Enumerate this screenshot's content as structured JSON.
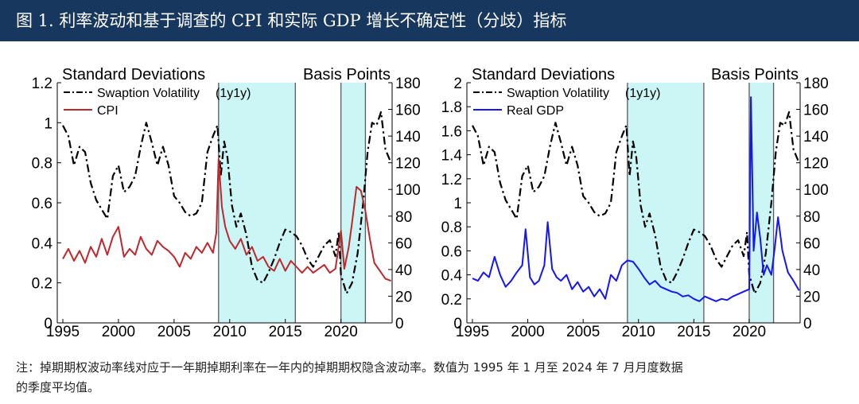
{
  "header": {
    "title": "图 1. 利率波动和基于调查的 CPI 和实际 GDP 增长不确定性（分歧）指标"
  },
  "note": {
    "line1": "注：掉期期权波动率线对应于一年期掉期利率在一年内的掉期期权隐含波动率。数值为 1995 年 1 月至 2024 年 7 月月度数据",
    "line2": "的季度平均值。"
  },
  "colors": {
    "swaption": "#000000",
    "cpi": "#c0272d",
    "gdp": "#1414ff",
    "shade": "#ccf5f5",
    "shade_border": "#5a5a5a"
  },
  "chart_data": [
    {
      "type": "line",
      "left_axis_label": "Standard Deviations",
      "right_axis_label": "Basis Points",
      "left_ylim": [
        0,
        1.2
      ],
      "left_ticks": [
        "0",
        "0.2",
        "0.4",
        "0.6",
        "0.8",
        "1",
        "1.2"
      ],
      "right_ylim": [
        0,
        180
      ],
      "right_ticks": [
        "0",
        "20",
        "40",
        "60",
        "80",
        "100",
        "120",
        "140",
        "160",
        "180"
      ],
      "xlim": [
        1994.5,
        2024.6
      ],
      "x_ticks": [
        "1995",
        "2000",
        "2005",
        "2010",
        "2015",
        "2020"
      ],
      "shaded_ranges": [
        [
          2009.0,
          2015.9
        ],
        [
          2020.0,
          2022.2
        ]
      ],
      "series": [
        {
          "name": "Swaption Volatility",
          "name_suffix": "(1y1y)",
          "axis": "right",
          "style": "dash-dot",
          "x": [
            1995.0,
            1995.5,
            1996.0,
            1996.5,
            1997.0,
            1997.5,
            1998.0,
            1998.5,
            1999.0,
            1999.5,
            2000.0,
            2000.5,
            2001.0,
            2001.5,
            2002.0,
            2002.5,
            2003.0,
            2003.5,
            2004.0,
            2004.5,
            2005.0,
            2005.5,
            2006.0,
            2006.5,
            2007.0,
            2007.5,
            2008.0,
            2008.5,
            2008.9,
            2009.2,
            2009.5,
            2009.8,
            2010.2,
            2010.6,
            2011.0,
            2011.5,
            2012.0,
            2012.5,
            2013.0,
            2013.5,
            2014.0,
            2014.5,
            2015.0,
            2015.5,
            2016.0,
            2016.5,
            2017.0,
            2017.5,
            2018.0,
            2018.5,
            2019.0,
            2019.5,
            2019.8,
            2020.0,
            2020.5,
            2021.0,
            2021.5,
            2022.0,
            2022.4,
            2022.8,
            2023.2,
            2023.6,
            2024.0,
            2024.5
          ],
          "y": [
            148,
            140,
            118,
            132,
            128,
            105,
            92,
            85,
            78,
            110,
            118,
            98,
            102,
            110,
            132,
            150,
            135,
            118,
            132,
            118,
            95,
            90,
            83,
            80,
            82,
            90,
            128,
            140,
            148,
            110,
            136,
            124,
            88,
            72,
            82,
            66,
            42,
            32,
            30,
            38,
            48,
            60,
            70,
            68,
            65,
            58,
            48,
            42,
            50,
            58,
            62,
            50,
            68,
            36,
            22,
            30,
            52,
            90,
            128,
            150,
            148,
            158,
            130,
            120
          ]
        },
        {
          "name": "CPI",
          "axis": "left",
          "style": "solid",
          "x": [
            1995.0,
            1995.5,
            1996.0,
            1996.5,
            1997.0,
            1997.5,
            1998.0,
            1998.5,
            1999.0,
            1999.5,
            2000.0,
            2000.5,
            2001.0,
            2001.5,
            2002.0,
            2002.5,
            2003.0,
            2003.5,
            2004.0,
            2004.5,
            2005.0,
            2005.5,
            2006.0,
            2006.5,
            2007.0,
            2007.5,
            2008.0,
            2008.5,
            2008.8,
            2009.0,
            2009.3,
            2009.6,
            2010.0,
            2010.5,
            2011.0,
            2011.5,
            2012.0,
            2012.5,
            2013.0,
            2013.5,
            2014.0,
            2014.5,
            2015.0,
            2015.5,
            2016.0,
            2016.5,
            2017.0,
            2017.5,
            2018.0,
            2018.5,
            2019.0,
            2019.5,
            2020.0,
            2020.3,
            2020.7,
            2021.0,
            2021.4,
            2021.8,
            2022.2,
            2022.6,
            2023.0,
            2023.5,
            2024.0,
            2024.5
          ],
          "y": [
            0.32,
            0.37,
            0.31,
            0.36,
            0.3,
            0.38,
            0.33,
            0.42,
            0.34,
            0.43,
            0.48,
            0.33,
            0.37,
            0.34,
            0.43,
            0.37,
            0.34,
            0.41,
            0.38,
            0.36,
            0.33,
            0.28,
            0.35,
            0.32,
            0.38,
            0.35,
            0.4,
            0.35,
            0.45,
            0.82,
            0.58,
            0.48,
            0.41,
            0.37,
            0.42,
            0.34,
            0.38,
            0.31,
            0.33,
            0.28,
            0.26,
            0.32,
            0.26,
            0.31,
            0.28,
            0.25,
            0.28,
            0.25,
            0.27,
            0.29,
            0.25,
            0.27,
            0.46,
            0.27,
            0.38,
            0.5,
            0.68,
            0.66,
            0.56,
            0.42,
            0.3,
            0.26,
            0.22,
            0.21
          ]
        }
      ]
    },
    {
      "type": "line",
      "left_axis_label": "Standard Deviations",
      "right_axis_label": "Basis Points",
      "left_ylim": [
        0,
        2
      ],
      "left_ticks": [
        "0",
        "0.2",
        "0.4",
        "0.6",
        "0.8",
        "1",
        "1.2",
        "1.4",
        "1.6",
        "1.8",
        "2"
      ],
      "right_ylim": [
        0,
        180
      ],
      "right_ticks": [
        "0",
        "20",
        "40",
        "60",
        "80",
        "100",
        "120",
        "140",
        "160",
        "180"
      ],
      "xlim": [
        1994.5,
        2024.6
      ],
      "x_ticks": [
        "1995",
        "2000",
        "2005",
        "2010",
        "2015",
        "2020"
      ],
      "shaded_ranges": [
        [
          2009.0,
          2015.9
        ],
        [
          2020.0,
          2022.2
        ]
      ],
      "series": [
        {
          "name": "Swaption Volatility",
          "name_suffix": "(1y1y)",
          "axis": "right",
          "style": "dash-dot",
          "x": [
            1995.0,
            1995.5,
            1996.0,
            1996.5,
            1997.0,
            1997.5,
            1998.0,
            1998.5,
            1999.0,
            1999.5,
            2000.0,
            2000.5,
            2001.0,
            2001.5,
            2002.0,
            2002.5,
            2003.0,
            2003.5,
            2004.0,
            2004.5,
            2005.0,
            2005.5,
            2006.0,
            2006.5,
            2007.0,
            2007.5,
            2008.0,
            2008.5,
            2008.9,
            2009.2,
            2009.5,
            2009.8,
            2010.2,
            2010.6,
            2011.0,
            2011.5,
            2012.0,
            2012.5,
            2013.0,
            2013.5,
            2014.0,
            2014.5,
            2015.0,
            2015.5,
            2016.0,
            2016.5,
            2017.0,
            2017.5,
            2018.0,
            2018.5,
            2019.0,
            2019.5,
            2019.8,
            2020.0,
            2020.5,
            2021.0,
            2021.5,
            2022.0,
            2022.4,
            2022.8,
            2023.2,
            2023.6,
            2024.0,
            2024.5
          ],
          "y": [
            148,
            140,
            118,
            132,
            128,
            105,
            92,
            85,
            78,
            110,
            118,
            98,
            102,
            110,
            132,
            150,
            135,
            118,
            132,
            118,
            95,
            90,
            83,
            80,
            82,
            90,
            128,
            140,
            148,
            110,
            136,
            124,
            88,
            72,
            82,
            66,
            42,
            32,
            30,
            38,
            48,
            60,
            70,
            68,
            65,
            58,
            48,
            42,
            50,
            58,
            62,
            50,
            68,
            36,
            22,
            30,
            52,
            90,
            128,
            150,
            148,
            158,
            130,
            120
          ]
        },
        {
          "name": "Real GDP",
          "axis": "left",
          "style": "solid",
          "x": [
            1995.0,
            1995.5,
            1996.0,
            1996.5,
            1997.0,
            1997.5,
            1998.0,
            1998.5,
            1999.0,
            1999.5,
            1999.8,
            2000.2,
            2000.6,
            2001.0,
            2001.5,
            2001.8,
            2002.2,
            2002.6,
            2003.0,
            2003.5,
            2004.0,
            2004.5,
            2005.0,
            2005.5,
            2006.0,
            2006.5,
            2007.0,
            2007.5,
            2008.0,
            2008.5,
            2009.0,
            2009.5,
            2010.0,
            2010.5,
            2011.0,
            2011.5,
            2012.0,
            2012.5,
            2013.0,
            2013.5,
            2014.0,
            2014.5,
            2015.0,
            2015.5,
            2016.0,
            2016.5,
            2017.0,
            2017.5,
            2018.0,
            2018.5,
            2019.0,
            2019.5,
            2020.0,
            2020.15,
            2020.4,
            2020.7,
            2021.0,
            2021.3,
            2021.6,
            2022.0,
            2022.3,
            2022.6,
            2023.0,
            2023.5,
            2024.0,
            2024.5
          ],
          "y": [
            0.37,
            0.35,
            0.42,
            0.38,
            0.55,
            0.4,
            0.3,
            0.35,
            0.42,
            0.48,
            0.78,
            0.38,
            0.32,
            0.35,
            0.48,
            0.84,
            0.45,
            0.38,
            0.35,
            0.4,
            0.28,
            0.34,
            0.26,
            0.3,
            0.22,
            0.28,
            0.2,
            0.4,
            0.35,
            0.48,
            0.52,
            0.51,
            0.45,
            0.38,
            0.32,
            0.35,
            0.3,
            0.28,
            0.26,
            0.25,
            0.22,
            0.23,
            0.2,
            0.18,
            0.22,
            0.2,
            0.18,
            0.2,
            0.19,
            0.22,
            0.24,
            0.26,
            0.28,
            1.88,
            0.6,
            0.92,
            0.7,
            0.4,
            0.48,
            0.4,
            0.62,
            0.88,
            0.6,
            0.42,
            0.35,
            0.27
          ]
        }
      ]
    }
  ]
}
